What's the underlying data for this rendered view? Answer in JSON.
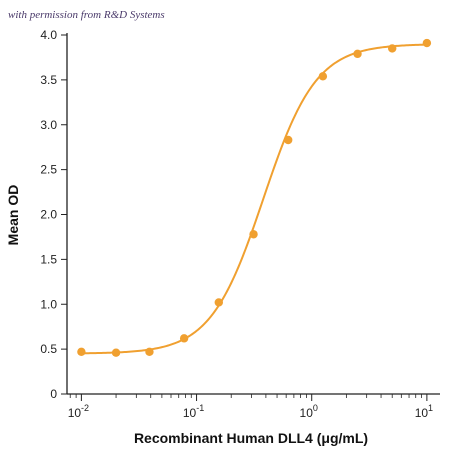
{
  "watermark": "with permission from R&D Systems",
  "chart_data": {
    "type": "scatter",
    "title": "",
    "xlabel": "Recombinant Human DLL4 (μg/mL)",
    "ylabel": "Mean OD",
    "x_scale": "log",
    "xlim": [
      0.0075,
      13
    ],
    "ylim": [
      0,
      4.0
    ],
    "x_ticks": [
      0.01,
      0.1,
      1,
      10
    ],
    "x_tick_labels": [
      {
        "base": "10",
        "exp": "-2"
      },
      {
        "base": "10",
        "exp": "-1"
      },
      {
        "base": "10",
        "exp": "0"
      },
      {
        "base": "10",
        "exp": "1"
      }
    ],
    "y_ticks": [
      0,
      0.5,
      1.0,
      1.5,
      2.0,
      2.5,
      3.0,
      3.5,
      4.0
    ],
    "y_tick_labels": [
      "0",
      "0.5",
      "1.0",
      "1.5",
      "2.0",
      "2.5",
      "3.0",
      "3.5",
      "4.0"
    ],
    "grid": false,
    "legend": "none",
    "color": "#f0a030",
    "points": [
      {
        "x": 0.01,
        "y": 0.47
      },
      {
        "x": 0.02,
        "y": 0.46
      },
      {
        "x": 0.039,
        "y": 0.47
      },
      {
        "x": 0.078,
        "y": 0.62
      },
      {
        "x": 0.156,
        "y": 1.02
      },
      {
        "x": 0.3125,
        "y": 1.78
      },
      {
        "x": 0.625,
        "y": 2.83
      },
      {
        "x": 1.25,
        "y": 3.54
      },
      {
        "x": 2.5,
        "y": 3.79
      },
      {
        "x": 5,
        "y": 3.85
      },
      {
        "x": 10,
        "y": 3.91
      }
    ],
    "fit_curve": {
      "bottom": 0.45,
      "top": 3.9,
      "ec50": 0.38,
      "hill": 1.9
    }
  }
}
